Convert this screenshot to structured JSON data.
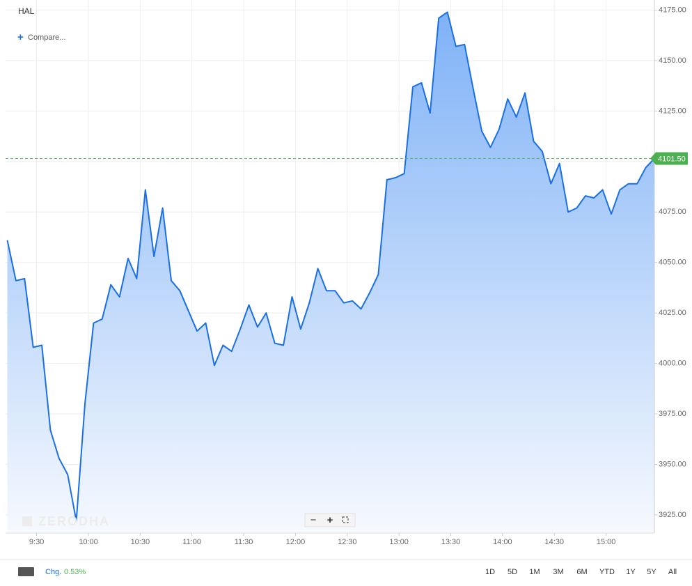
{
  "chart_data": {
    "type": "area",
    "symbol": "HAL",
    "x": [
      553,
      558,
      563,
      568,
      573,
      578,
      583,
      588,
      593,
      598,
      603,
      608,
      613,
      618,
      623,
      628,
      633,
      638,
      643,
      648,
      653,
      658,
      663,
      668,
      673,
      678,
      683,
      688,
      693,
      698,
      703,
      708,
      713,
      718,
      723,
      728,
      733,
      738,
      743,
      748,
      753,
      758,
      763,
      768,
      773,
      778,
      783,
      788,
      793,
      798,
      803,
      808,
      813,
      818,
      823,
      828,
      833,
      838,
      843,
      848,
      853,
      858,
      863,
      868,
      873,
      878,
      883,
      888,
      893,
      898,
      903,
      908,
      913,
      918,
      923,
      928
    ],
    "values": [
      4061,
      4041,
      4042,
      4008,
      4009,
      3967,
      3953,
      3945,
      3922,
      3980,
      4020,
      4022,
      4039,
      4033,
      4052,
      4042,
      4086,
      4053,
      4077,
      4041,
      4036,
      4026,
      4016,
      4020,
      3999,
      4009,
      4006,
      4017,
      4029,
      4018,
      4025,
      4010,
      4009,
      4033,
      4017,
      4030,
      4047,
      4036,
      4036,
      4030,
      4031,
      4027,
      4035,
      4044,
      4091,
      4092,
      4094,
      4137,
      4139,
      4124,
      4171,
      4174,
      4157,
      4158,
      4136,
      4115,
      4107,
      4116,
      4131,
      4122,
      4134,
      4110,
      4105,
      4089,
      4099,
      4075,
      4077,
      4083,
      4082,
      4086,
      4074,
      4086,
      4089,
      4089,
      4097,
      4101.5
    ],
    "color": "#1a6fe6",
    "xlim": [
      552,
      928
    ],
    "xticks": [
      {
        "value": 570,
        "label": "9:30"
      },
      {
        "value": 600,
        "label": "10:00"
      },
      {
        "value": 630,
        "label": "10:30"
      },
      {
        "value": 660,
        "label": "11:00"
      },
      {
        "value": 690,
        "label": "11:30"
      },
      {
        "value": 720,
        "label": "12:00"
      },
      {
        "value": 750,
        "label": "12:30"
      },
      {
        "value": 780,
        "label": "13:00"
      },
      {
        "value": 810,
        "label": "13:30"
      },
      {
        "value": 840,
        "label": "14:00"
      },
      {
        "value": 870,
        "label": "14:30"
      },
      {
        "value": 900,
        "label": "15:00"
      }
    ],
    "ylim": [
      3916,
      4180
    ],
    "yticks": [
      {
        "value": 3925,
        "label": "3925.00"
      },
      {
        "value": 3950,
        "label": "3950.00"
      },
      {
        "value": 3975,
        "label": "3975.00"
      },
      {
        "value": 4000,
        "label": "4000.00"
      },
      {
        "value": 4025,
        "label": "4025.00"
      },
      {
        "value": 4050,
        "label": "4050.00"
      },
      {
        "value": 4075,
        "label": "4075.00"
      },
      {
        "value": 4100,
        "label": "4100.00"
      },
      {
        "value": 4125,
        "label": "4125.00"
      },
      {
        "value": 4150,
        "label": "4150.00"
      },
      {
        "value": 4175,
        "label": "4175.00"
      }
    ],
    "last_price": {
      "value": 4101.5,
      "label": "4101.50"
    },
    "grid": true
  },
  "toolbar": {
    "compare": "Compare...",
    "watermark": "ZERODHA",
    "change_label": "Chg.",
    "change_value": "0.53%",
    "ranges": [
      "1D",
      "5D",
      "1M",
      "3M",
      "6M",
      "YTD",
      "1Y",
      "5Y",
      "All"
    ]
  }
}
